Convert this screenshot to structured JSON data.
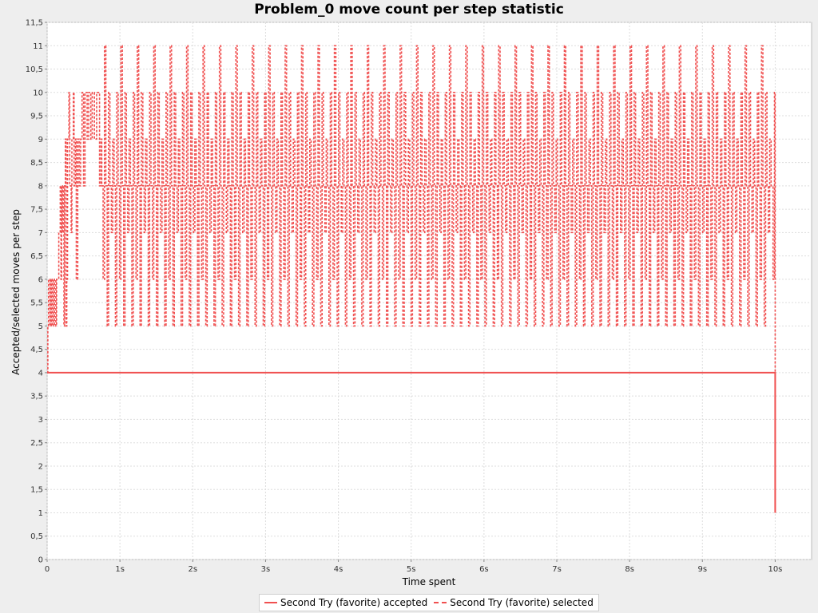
{
  "chart_data": {
    "type": "line",
    "title": "Problem_0 move count per step statistic",
    "xlabel": "Time spent",
    "ylabel": "Accepted/selected moves per step",
    "xlim": [
      0,
      10.5
    ],
    "ylim": [
      0,
      11.5
    ],
    "x_ticks": [
      0,
      1,
      2,
      3,
      4,
      5,
      6,
      7,
      8,
      9,
      10
    ],
    "x_tick_labels": [
      "0",
      "1s",
      "2s",
      "3s",
      "4s",
      "5s",
      "6s",
      "7s",
      "8s",
      "9s",
      "10s"
    ],
    "y_ticks": [
      0,
      0.5,
      1,
      1.5,
      2,
      2.5,
      3,
      3.5,
      4,
      4.5,
      5,
      5.5,
      6,
      6.5,
      7,
      7.5,
      8,
      8.5,
      9,
      9.5,
      10,
      10.5,
      11,
      11.5
    ],
    "y_tick_labels": [
      "0",
      "0,5",
      "1",
      "1,5",
      "2",
      "2,5",
      "3",
      "3,5",
      "4",
      "4,5",
      "5",
      "5,5",
      "6",
      "6,5",
      "7",
      "7,5",
      "8",
      "8,5",
      "9",
      "9,5",
      "10",
      "10,5",
      "11",
      "11,5"
    ],
    "grid": true,
    "legend_position": "bottom",
    "series": [
      {
        "name": "Second Try (favorite) accepted",
        "color": "#f05050",
        "style": "solid",
        "x": [
          0,
          0.5,
          1,
          2,
          3,
          4,
          5,
          6,
          7,
          8,
          9,
          9.7,
          10,
          10
        ],
        "y": [
          4,
          4,
          4,
          4,
          4,
          4,
          4,
          4,
          4,
          4,
          4,
          4,
          4,
          1
        ]
      },
      {
        "name": "Second Try (favorite) selected",
        "color": "#f05050",
        "style": "dashed",
        "oscillation": {
          "x_start": 0.75,
          "x_end": 10.0,
          "period": 0.225,
          "pattern": [
            8,
            6,
            11,
            8,
            5,
            10,
            8,
            7,
            9,
            8,
            5,
            10
          ],
          "pattern_step": 0.0188
        },
        "x": [
          0,
          0.01,
          0.02,
          0.04,
          0.05,
          0.06,
          0.07,
          0.09,
          0.1,
          0.12,
          0.13,
          0.15,
          0.16,
          0.18,
          0.19,
          0.2,
          0.21,
          0.22,
          0.23,
          0.24,
          0.25,
          0.26,
          0.27,
          0.28,
          0.3,
          0.31,
          0.33,
          0.34,
          0.36,
          0.37,
          0.39,
          0.4,
          0.42,
          0.44,
          0.46,
          0.48,
          0.5,
          0.52,
          0.55,
          0.57,
          0.6,
          0.62,
          0.65,
          0.68,
          0.7,
          0.72,
          0.74,
          9.95,
          9.97,
          9.99,
          10.0
        ],
        "y": [
          4,
          5,
          6,
          5,
          6,
          5,
          6,
          5,
          6,
          5,
          6,
          6,
          7,
          8,
          6,
          8,
          7,
          8,
          5,
          8,
          9,
          5,
          6,
          9,
          10,
          8,
          7,
          9,
          10,
          8,
          9,
          6,
          9,
          8,
          9,
          10,
          8,
          10,
          9,
          10,
          9,
          10,
          9,
          10,
          10,
          8,
          9,
          8,
          6,
          10,
          4
        ]
      }
    ]
  }
}
